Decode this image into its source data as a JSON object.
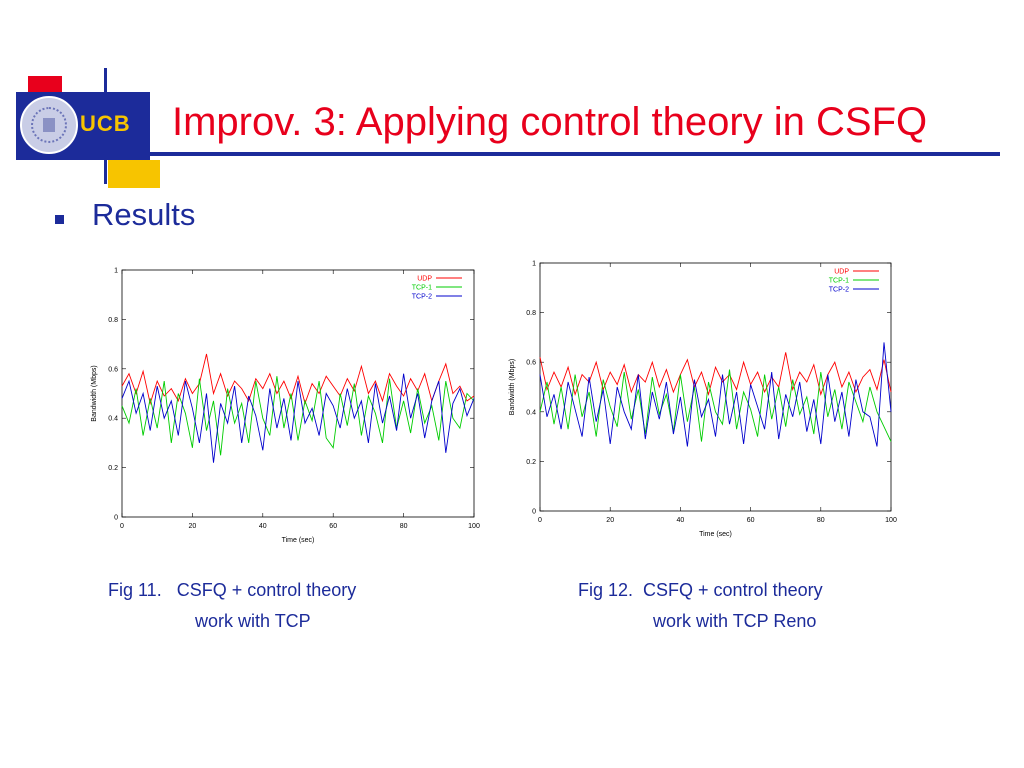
{
  "slide": {
    "title": "Improv. 3:  Applying control theory in CSFQ",
    "bullet_text": "Results",
    "logo_text": "UCB",
    "colors": {
      "title": "#e8001c",
      "accent_blue": "#1c2b9a",
      "logo_red": "#e8001c",
      "logo_yellow": "#f7c400"
    }
  },
  "captions": {
    "fig11_line1": "Fig 11.   CSFQ + control theory",
    "fig11_line2": "work with TCP",
    "fig12_line1": "Fig 12.  CSFQ + control theory",
    "fig12_line2": "work with TCP Reno"
  },
  "chart_data": [
    {
      "type": "line",
      "xlabel": "Time (sec)",
      "ylabel": "Bandwidth (Mbps)",
      "xlim": [
        0,
        100
      ],
      "ylim": [
        0,
        1
      ],
      "xticks": [
        0,
        20,
        40,
        60,
        80,
        100
      ],
      "yticks": [
        0,
        0.2,
        0.4,
        0.6,
        0.8,
        1
      ],
      "ytick_labels": [
        "0",
        "0.2",
        "0.4",
        "0.6",
        "0.8",
        "1"
      ],
      "legend_position": "top-right",
      "series": [
        {
          "name": "UDP",
          "color": "#ff0000",
          "x": [
            0,
            2,
            4,
            6,
            8,
            10,
            12,
            14,
            16,
            18,
            20,
            22,
            24,
            26,
            28,
            30,
            32,
            34,
            36,
            38,
            40,
            42,
            44,
            46,
            48,
            50,
            52,
            54,
            56,
            58,
            60,
            62,
            64,
            66,
            68,
            70,
            72,
            74,
            76,
            78,
            80,
            82,
            84,
            86,
            88,
            90,
            92,
            94,
            96,
            98,
            100
          ],
          "values": [
            0.53,
            0.58,
            0.5,
            0.59,
            0.46,
            0.55,
            0.49,
            0.52,
            0.47,
            0.56,
            0.5,
            0.54,
            0.66,
            0.5,
            0.58,
            0.49,
            0.55,
            0.52,
            0.47,
            0.56,
            0.52,
            0.58,
            0.5,
            0.55,
            0.48,
            0.57,
            0.46,
            0.54,
            0.5,
            0.57,
            0.53,
            0.49,
            0.56,
            0.51,
            0.61,
            0.5,
            0.55,
            0.47,
            0.58,
            0.53,
            0.49,
            0.56,
            0.51,
            0.58,
            0.47,
            0.55,
            0.62,
            0.5,
            0.53,
            0.47,
            0.49
          ]
        },
        {
          "name": "TCP-1",
          "color": "#00cc00",
          "x": [
            0,
            2,
            4,
            6,
            8,
            10,
            12,
            14,
            16,
            18,
            20,
            22,
            24,
            26,
            28,
            30,
            32,
            34,
            36,
            38,
            40,
            42,
            44,
            46,
            48,
            50,
            52,
            54,
            56,
            58,
            60,
            62,
            64,
            66,
            68,
            70,
            72,
            74,
            76,
            78,
            80,
            82,
            84,
            86,
            88,
            90,
            92,
            94,
            96,
            98,
            100
          ],
          "values": [
            0.45,
            0.38,
            0.52,
            0.33,
            0.48,
            0.36,
            0.55,
            0.3,
            0.5,
            0.42,
            0.28,
            0.56,
            0.35,
            0.47,
            0.25,
            0.52,
            0.38,
            0.46,
            0.3,
            0.55,
            0.4,
            0.33,
            0.57,
            0.36,
            0.5,
            0.31,
            0.47,
            0.39,
            0.55,
            0.32,
            0.28,
            0.5,
            0.37,
            0.54,
            0.33,
            0.49,
            0.42,
            0.3,
            0.56,
            0.36,
            0.47,
            0.34,
            0.52,
            0.38,
            0.45,
            0.31,
            0.55,
            0.4,
            0.36,
            0.5,
            0.47
          ]
        },
        {
          "name": "TCP-2",
          "color": "#0000cc",
          "x": [
            0,
            2,
            4,
            6,
            8,
            10,
            12,
            14,
            16,
            18,
            20,
            22,
            24,
            26,
            28,
            30,
            32,
            34,
            36,
            38,
            40,
            42,
            44,
            46,
            48,
            50,
            52,
            54,
            56,
            58,
            60,
            62,
            64,
            66,
            68,
            70,
            72,
            74,
            76,
            78,
            80,
            82,
            84,
            86,
            88,
            90,
            92,
            94,
            96,
            98,
            100
          ],
          "values": [
            0.48,
            0.55,
            0.42,
            0.5,
            0.35,
            0.53,
            0.4,
            0.47,
            0.33,
            0.55,
            0.44,
            0.3,
            0.5,
            0.22,
            0.46,
            0.38,
            0.53,
            0.3,
            0.49,
            0.41,
            0.27,
            0.52,
            0.36,
            0.48,
            0.31,
            0.55,
            0.38,
            0.44,
            0.33,
            0.5,
            0.45,
            0.36,
            0.52,
            0.4,
            0.47,
            0.3,
            0.54,
            0.38,
            0.49,
            0.35,
            0.58,
            0.4,
            0.5,
            0.32,
            0.47,
            0.55,
            0.26,
            0.46,
            0.52,
            0.41,
            0.48
          ]
        }
      ]
    },
    {
      "type": "line",
      "xlabel": "Time (sec)",
      "ylabel": "Bandwidth (Mbps)",
      "xlim": [
        0,
        100
      ],
      "ylim": [
        0,
        1
      ],
      "xticks": [
        0,
        20,
        40,
        60,
        80,
        100
      ],
      "yticks": [
        0,
        0.2,
        0.4,
        0.6,
        0.8,
        1
      ],
      "ytick_labels": [
        "0",
        "0.2",
        "0.4",
        "0.6",
        "0.8",
        "1"
      ],
      "legend_position": "top-right",
      "series": [
        {
          "name": "UDP",
          "color": "#ff0000",
          "x": [
            0,
            2,
            4,
            6,
            8,
            10,
            12,
            14,
            16,
            18,
            20,
            22,
            24,
            26,
            28,
            30,
            32,
            34,
            36,
            38,
            40,
            42,
            44,
            46,
            48,
            50,
            52,
            54,
            56,
            58,
            60,
            62,
            64,
            66,
            68,
            70,
            72,
            74,
            76,
            78,
            80,
            82,
            84,
            86,
            88,
            90,
            92,
            94,
            96,
            98,
            100
          ],
          "values": [
            0.62,
            0.49,
            0.56,
            0.5,
            0.58,
            0.47,
            0.55,
            0.52,
            0.6,
            0.49,
            0.56,
            0.51,
            0.59,
            0.48,
            0.55,
            0.52,
            0.6,
            0.5,
            0.57,
            0.48,
            0.55,
            0.61,
            0.5,
            0.56,
            0.47,
            0.58,
            0.52,
            0.55,
            0.49,
            0.6,
            0.51,
            0.56,
            0.48,
            0.54,
            0.5,
            0.64,
            0.49,
            0.56,
            0.52,
            0.59,
            0.47,
            0.55,
            0.6,
            0.5,
            0.56,
            0.48,
            0.54,
            0.57,
            0.49,
            0.61,
            0.48
          ]
        },
        {
          "name": "TCP-1",
          "color": "#00cc00",
          "x": [
            0,
            2,
            4,
            6,
            8,
            10,
            12,
            14,
            16,
            18,
            20,
            22,
            24,
            26,
            28,
            30,
            32,
            34,
            36,
            38,
            40,
            42,
            44,
            46,
            48,
            50,
            52,
            54,
            56,
            58,
            60,
            62,
            64,
            66,
            68,
            70,
            72,
            74,
            76,
            78,
            80,
            82,
            84,
            86,
            88,
            90,
            92,
            94,
            96,
            98,
            100
          ],
          "values": [
            0.4,
            0.52,
            0.35,
            0.5,
            0.33,
            0.55,
            0.38,
            0.48,
            0.3,
            0.53,
            0.42,
            0.34,
            0.56,
            0.37,
            0.49,
            0.31,
            0.54,
            0.39,
            0.47,
            0.32,
            0.55,
            0.36,
            0.5,
            0.28,
            0.52,
            0.4,
            0.35,
            0.57,
            0.33,
            0.48,
            0.41,
            0.3,
            0.55,
            0.37,
            0.5,
            0.34,
            0.53,
            0.39,
            0.46,
            0.31,
            0.56,
            0.38,
            0.49,
            0.33,
            0.52,
            0.44,
            0.36,
            0.5,
            0.4,
            0.34,
            0.28
          ]
        },
        {
          "name": "TCP-2",
          "color": "#0000cc",
          "x": [
            0,
            2,
            4,
            6,
            8,
            10,
            12,
            14,
            16,
            18,
            20,
            22,
            24,
            26,
            28,
            30,
            32,
            34,
            36,
            38,
            40,
            42,
            44,
            46,
            48,
            50,
            52,
            54,
            56,
            58,
            60,
            62,
            64,
            66,
            68,
            70,
            72,
            74,
            76,
            78,
            80,
            82,
            84,
            86,
            88,
            90,
            92,
            94,
            96,
            98,
            100
          ],
          "values": [
            0.55,
            0.38,
            0.47,
            0.33,
            0.52,
            0.41,
            0.3,
            0.54,
            0.36,
            0.49,
            0.27,
            0.5,
            0.4,
            0.33,
            0.55,
            0.29,
            0.48,
            0.37,
            0.52,
            0.31,
            0.46,
            0.26,
            0.53,
            0.38,
            0.45,
            0.3,
            0.55,
            0.35,
            0.48,
            0.27,
            0.51,
            0.42,
            0.33,
            0.56,
            0.29,
            0.47,
            0.38,
            0.52,
            0.32,
            0.45,
            0.27,
            0.55,
            0.36,
            0.48,
            0.3,
            0.53,
            0.4,
            0.38,
            0.26,
            0.68,
            0.4
          ]
        }
      ]
    }
  ]
}
